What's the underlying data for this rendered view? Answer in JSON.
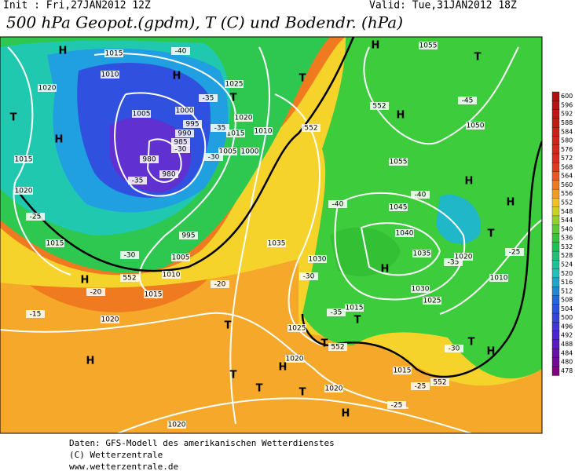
{
  "header": {
    "init": "Init : Fri,27JAN2012 12Z",
    "valid": "Valid: Tue,31JAN2012 18Z",
    "title": "500 hPa Geopot.(gpdm), T (C) und Bodendr. (hPa)"
  },
  "legend": {
    "ticks": [
      600,
      596,
      592,
      588,
      584,
      580,
      576,
      572,
      568,
      564,
      560,
      556,
      552,
      548,
      544,
      540,
      536,
      532,
      528,
      524,
      520,
      516,
      512,
      508,
      504,
      500,
      496,
      492,
      488,
      484,
      480,
      478
    ]
  },
  "map": {
    "labels": [
      "H",
      "H",
      "T",
      "T",
      "H",
      "1015",
      "1010",
      "1020",
      "1005",
      "1000",
      "995",
      "990",
      "985",
      "980",
      "980",
      "1025",
      "1020",
      "1010",
      "1015",
      "1005",
      "1000",
      "1015",
      "1020",
      "-25",
      "1015",
      "995",
      "1005",
      "1010",
      "H",
      "-20",
      "1015",
      "1020",
      "-15",
      "H",
      "1020",
      "T",
      "T",
      "T",
      "1020",
      "H",
      "T",
      "1020",
      "H",
      "T",
      "1025",
      "1015",
      "T",
      "-35",
      "1035",
      "1030",
      "-30",
      "H",
      "1040",
      "1045",
      "1055",
      "H",
      "T",
      "H",
      "1055",
      "T",
      "-45",
      "1050",
      "H",
      "-40",
      "-40",
      "1035",
      "1030",
      "1025",
      "-35",
      "1020",
      "T",
      "1010",
      "H",
      "-25",
      "T",
      "H",
      "-30",
      "1015",
      "-25",
      "-25",
      "-30",
      "-30",
      "-35",
      "-40",
      "-35",
      "-35",
      "-30",
      "-20",
      "552",
      "552",
      "552",
      "552",
      "552"
    ]
  },
  "footer": {
    "lines": [
      "Daten: GFS-Modell des amerikanischen Wetterdienstes",
      "(C) Wetterzentrale",
      "www.wetterzentrale.de"
    ]
  }
}
